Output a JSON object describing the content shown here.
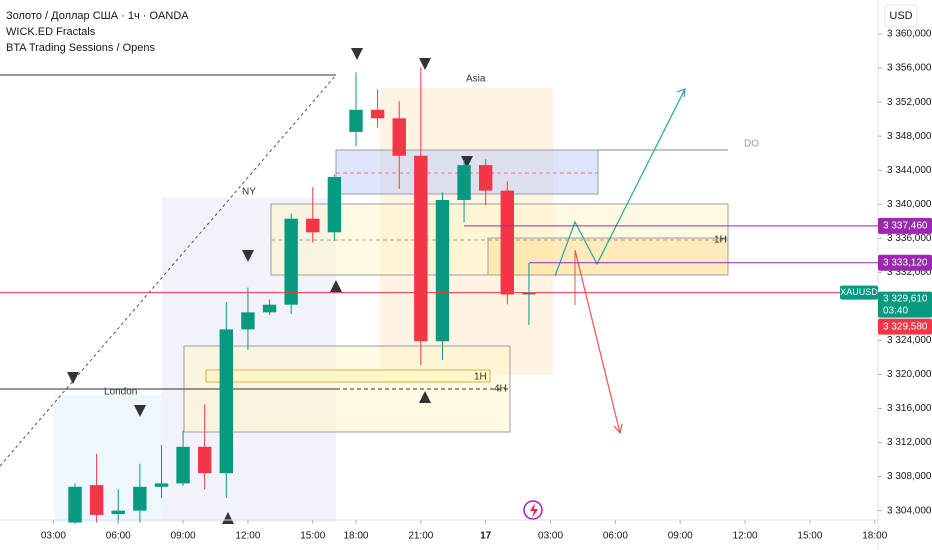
{
  "chart_data": {
    "type": "candlestick",
    "title": "Золото / Доллар США · 1ч · OANDA",
    "indicators": [
      "WICK.ED Fractals",
      "BTA Trading Sessions / Opens"
    ],
    "currency": "USD",
    "symbol": "XAUUSD",
    "countdown": "03:40",
    "up_color": "#089981",
    "down_color": "#f23645",
    "x": [
      0,
      1,
      2,
      3,
      4,
      5,
      6,
      7,
      8,
      9,
      10,
      11,
      12,
      13,
      14,
      15,
      16,
      17,
      18,
      19,
      20,
      21
    ],
    "open": [
      3302.6,
      3307.0,
      3303.6,
      3304.0,
      3306.8,
      3307.2,
      3311.5,
      3308.4,
      3325.3,
      3327.3,
      3328.2,
      3338.3,
      3336.7,
      3348.5,
      3351.1,
      3350.1,
      3345.7,
      3323.9,
      3340.5,
      3344.6,
      3341.6,
      3329.4
    ],
    "high": [
      3307.2,
      3310.7,
      3306.5,
      3309.5,
      3311.7,
      3313.4,
      3316.5,
      3328.5,
      3330.2,
      3328.8,
      3338.9,
      3342.0,
      3343.5,
      3355.5,
      3353.5,
      3352.1,
      3356.1,
      3341.4,
      3345.2,
      3345.3,
      3342.7,
      3333.1
    ],
    "low": [
      3302.4,
      3302.6,
      3302.5,
      3302.6,
      3305.5,
      3306.9,
      3306.5,
      3305.5,
      3322.9,
      3327.0,
      3327.1,
      3335.5,
      3335.7,
      3346.8,
      3349.0,
      3341.8,
      3321.1,
      3321.7,
      3337.9,
      3339.9,
      3328.2,
      3325.8
    ],
    "close": [
      3306.8,
      3303.5,
      3304.0,
      3306.8,
      3307.2,
      3311.5,
      3308.4,
      3325.3,
      3327.3,
      3328.2,
      3338.3,
      3336.7,
      3343.2,
      3351.1,
      3350.1,
      3345.7,
      3323.9,
      3340.5,
      3344.6,
      3341.6,
      3329.4,
      3329.6
    ],
    "xlim": [
      -3.47,
      37.15
    ],
    "xticks": [
      {
        "value": -1,
        "label": "03:00"
      },
      {
        "value": 2,
        "label": "06:00"
      },
      {
        "value": 5,
        "label": "09:00"
      },
      {
        "value": 8,
        "label": "12:00"
      },
      {
        "value": 11,
        "label": "15:00"
      },
      {
        "value": 13,
        "label": "18:00"
      },
      {
        "value": 16,
        "label": "21:00"
      },
      {
        "value": 19,
        "label": "17"
      },
      {
        "value": 22,
        "label": "03:00"
      },
      {
        "value": 25,
        "label": "06:00"
      },
      {
        "value": 28,
        "label": "09:00"
      },
      {
        "value": 31,
        "label": "12:00"
      },
      {
        "value": 34,
        "label": "15:00"
      },
      {
        "value": 37,
        "label": "18:00"
      }
    ],
    "ylim": [
      3302.9,
      3364.0
    ],
    "yticks": [
      {
        "value": 3304,
        "label": "3 304,000"
      },
      {
        "value": 3308,
        "label": "3 308,000"
      },
      {
        "value": 3312,
        "label": "3 312,000"
      },
      {
        "value": 3316,
        "label": "3 316,000"
      },
      {
        "value": 3320,
        "label": "3 320,000"
      },
      {
        "value": 3324,
        "label": "3 324,000"
      },
      {
        "value": 3328,
        "label": "3 328,000"
      },
      {
        "value": 3332,
        "label": "3 332,000"
      },
      {
        "value": 3336,
        "label": "3 336,000"
      },
      {
        "value": 3340,
        "label": "3 340,000"
      },
      {
        "value": 3344,
        "label": "3 344,000"
      },
      {
        "value": 3348,
        "label": "3 348,000"
      },
      {
        "value": 3352,
        "label": "3 352,000"
      },
      {
        "value": 3356,
        "label": "3 356,000"
      },
      {
        "value": 3360,
        "label": "3 360,000"
      }
    ],
    "price_labels": [
      {
        "value": 3337.46,
        "label": "3 337,460",
        "color": "#9c27b0"
      },
      {
        "value": 3333.12,
        "label": "3 333,120",
        "color": "#9c27b0"
      },
      {
        "value": 3329.61,
        "label": "3 329,610",
        "color": "#089981"
      },
      {
        "value": 3329.58,
        "label": "3 329,580",
        "color": "#f23645"
      }
    ],
    "annotations": [
      "Asia",
      "NY",
      "London",
      "DO",
      "1H",
      "1H",
      "4H"
    ]
  }
}
